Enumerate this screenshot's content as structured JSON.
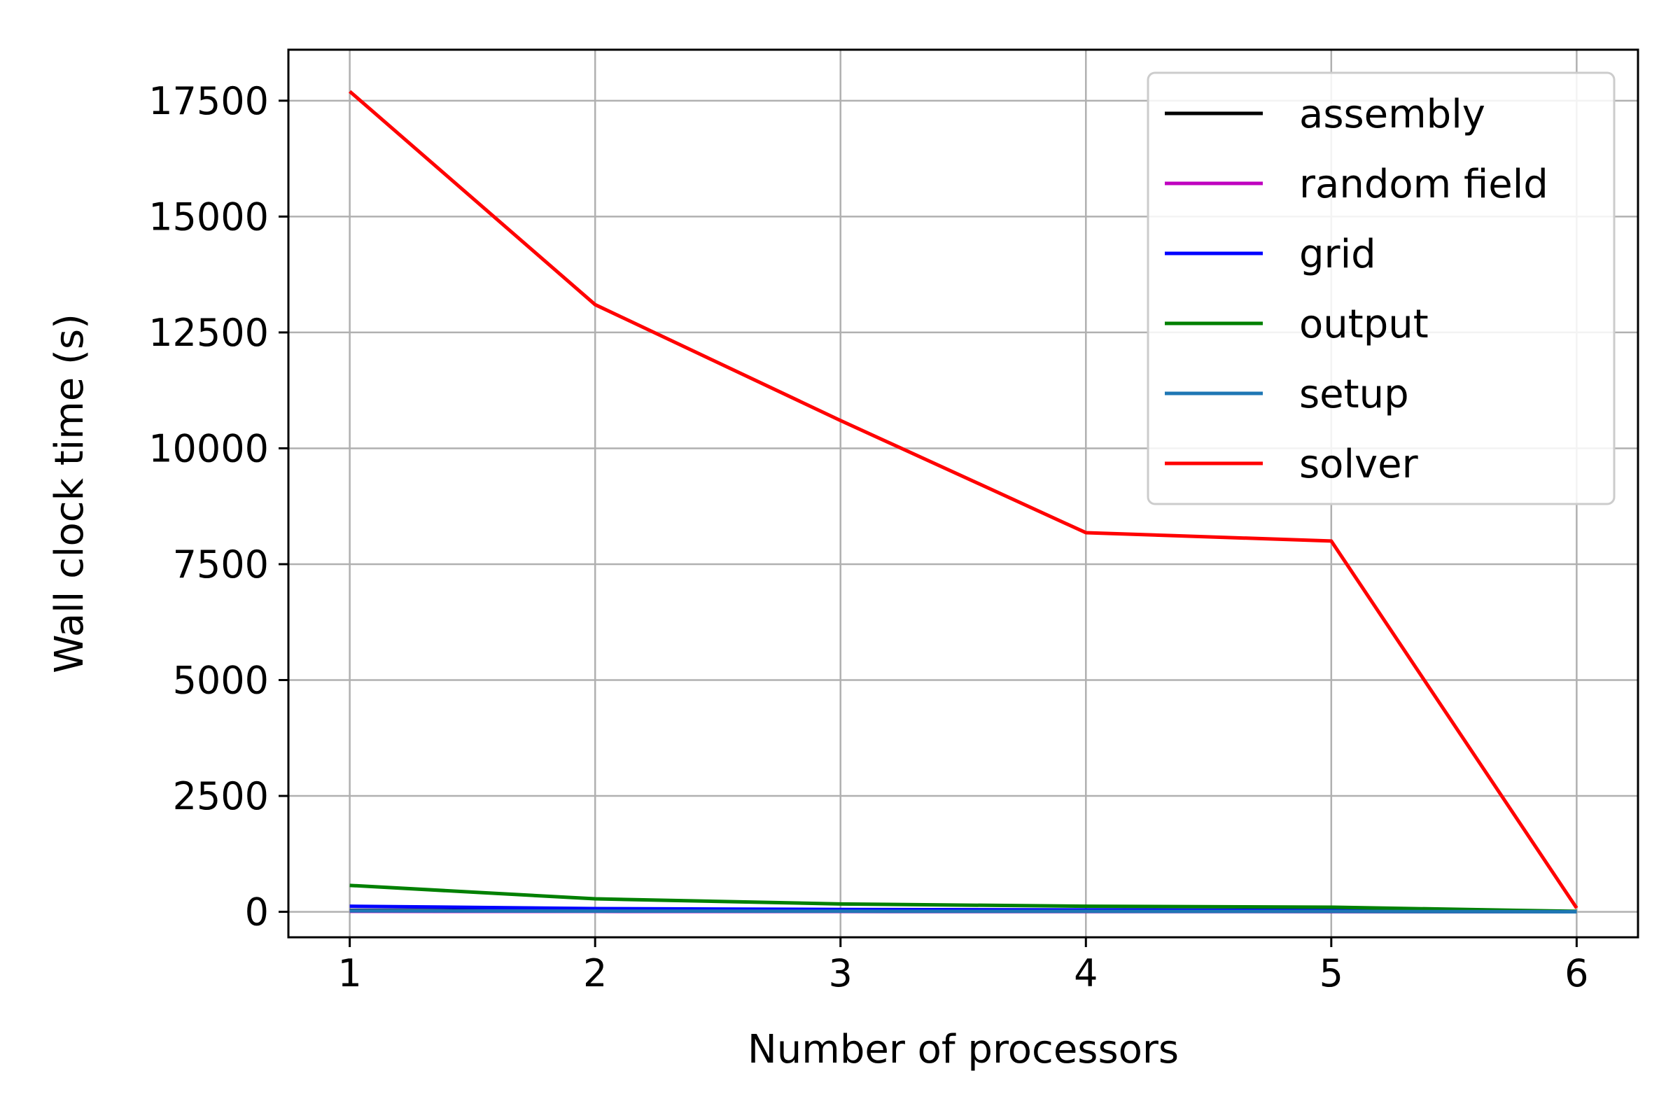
{
  "chart_data": {
    "type": "line",
    "title": "",
    "xlabel": "Number of processors",
    "ylabel": "Wall clock time (s)",
    "x": [
      1,
      2,
      3,
      4,
      5,
      6
    ],
    "xlim": [
      0.75,
      6.25
    ],
    "ylim": [
      -550,
      18600
    ],
    "xticks": [
      1,
      2,
      3,
      4,
      5,
      6
    ],
    "yticks": [
      0,
      2500,
      5000,
      7500,
      10000,
      12500,
      15000,
      17500
    ],
    "grid": true,
    "legend_position": "top-right",
    "series": [
      {
        "name": "assembly",
        "color": "#000000",
        "values": [
          30,
          20,
          15,
          10,
          8,
          2
        ]
      },
      {
        "name": "random field",
        "color": "#bf00bf",
        "values": [
          10,
          8,
          6,
          5,
          4,
          1
        ]
      },
      {
        "name": "grid",
        "color": "#0000ff",
        "values": [
          120,
          70,
          50,
          40,
          30,
          5
        ]
      },
      {
        "name": "output",
        "color": "#008000",
        "values": [
          570,
          280,
          170,
          120,
          100,
          10
        ]
      },
      {
        "name": "setup",
        "color": "#1f77b4",
        "values": [
          20,
          15,
          12,
          10,
          8,
          2
        ]
      },
      {
        "name": "solver",
        "color": "#ff0000",
        "values": [
          17700,
          13100,
          10600,
          8180,
          8000,
          80
        ]
      }
    ]
  }
}
